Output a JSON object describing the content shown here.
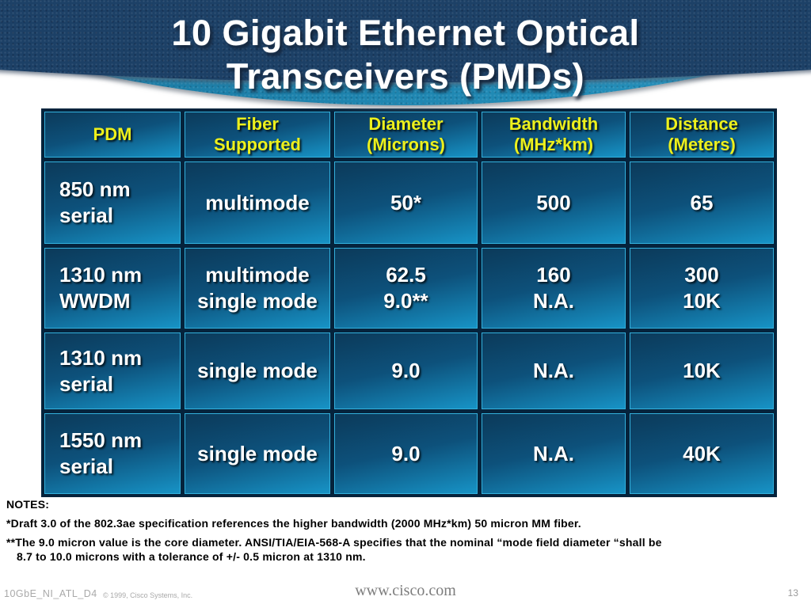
{
  "slide": {
    "title": {
      "line1": "10 Gigabit Ethernet Optical",
      "line2": "Transceivers (PMDs)"
    }
  },
  "table": {
    "headers": [
      "PDM",
      "Fiber\nSupported",
      "Diameter\n(Microns)",
      "Bandwidth\n(MHz*km)",
      "Distance\n(Meters)"
    ],
    "rows": [
      {
        "cells": [
          "850 nm\nserial",
          "multimode",
          "50*",
          "500",
          "65"
        ]
      },
      {
        "cells": [
          "1310 nm\nWWDM",
          "multimode\nsingle mode",
          "62.5\n9.0**",
          "160\nN.A.",
          "300\n10K"
        ]
      },
      {
        "cells": [
          "1310 nm\nserial",
          "single mode",
          "9.0",
          "N.A.",
          "10K"
        ]
      },
      {
        "cells": [
          "1550 nm\nserial",
          "single mode",
          "9.0",
          "N.A.",
          "40K"
        ]
      }
    ]
  },
  "notes": {
    "heading": "NOTES:",
    "lines": [
      "*Draft 3.0 of the 802.3ae specification references the higher bandwidth (2000 MHz*km) 50 micron MM fiber.",
      "**The 9.0 micron value is the core diameter.  ANSI/TIA/EIA-568-A specifies that the nominal “mode field diameter “shall be",
      "8.7 to 10.0 microns with a tolerance of +/- 0.5 micron at 1310 nm."
    ]
  },
  "footer": {
    "doc_id": "10GbE_NI_ATL_D4",
    "copyright": "© 1999, Cisco Systems, Inc.",
    "website": "www.cisco.com",
    "page_number": "13"
  },
  "colors": {
    "banner_navy": "#1d4065",
    "banner_teal": "#1f7fa8",
    "cell_gradient_top": "#0c3a5a",
    "cell_gradient_bottom": "#1793c6",
    "cell_border": "#33b1dd",
    "header_text_yellow": "#edf01c",
    "body_text": "#ffffff"
  }
}
